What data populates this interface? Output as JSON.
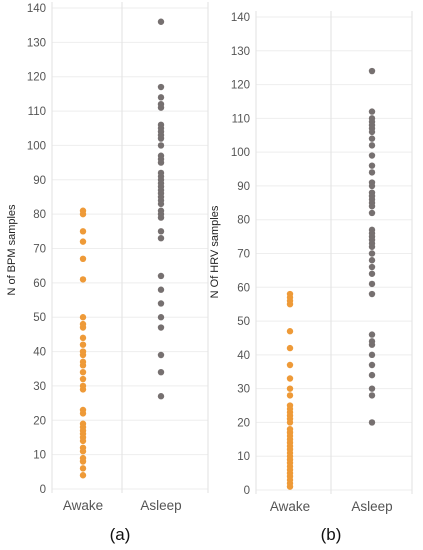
{
  "chart_data": [
    {
      "type": "scatter",
      "caption": "(a)",
      "ylabel": "N of BPM samples",
      "xlabel": "",
      "ylim": [
        0,
        140
      ],
      "yticks": [
        0,
        10,
        20,
        30,
        40,
        50,
        60,
        70,
        80,
        90,
        100,
        110,
        120,
        130,
        140
      ],
      "categories": [
        "Awake",
        "Asleep"
      ],
      "grid": true,
      "series": [
        {
          "category": "Awake",
          "color": "#ee9a38",
          "values": [
            4,
            6,
            8,
            9,
            11,
            12,
            14,
            15,
            16,
            17,
            18,
            19,
            22,
            23,
            29,
            30,
            32,
            34,
            36,
            37,
            39,
            40,
            42,
            44,
            47,
            48,
            50,
            61,
            67,
            72,
            75,
            80,
            81
          ]
        },
        {
          "category": "Asleep",
          "color": "#767070",
          "values": [
            27,
            34,
            39,
            47,
            50,
            54,
            58,
            62,
            73,
            75,
            79,
            80,
            81,
            83,
            84,
            85,
            86,
            87,
            88,
            89,
            90,
            91,
            92,
            95,
            96,
            97,
            100,
            102,
            103,
            104,
            105,
            106,
            111,
            112,
            114,
            117,
            136
          ]
        }
      ]
    },
    {
      "type": "scatter",
      "caption": "(b)",
      "ylabel": "N Of HRV samples",
      "xlabel": "",
      "ylim": [
        0,
        140
      ],
      "yticks": [
        0,
        10,
        20,
        30,
        40,
        50,
        60,
        70,
        80,
        90,
        100,
        110,
        120,
        130,
        140
      ],
      "categories": [
        "Awake",
        "Asleep"
      ],
      "grid": true,
      "series": [
        {
          "category": "Awake",
          "color": "#ee9a38",
          "values": [
            1,
            2,
            3,
            4,
            5,
            6,
            7,
            8,
            9,
            10,
            11,
            12,
            13,
            14,
            15,
            16,
            17,
            18,
            20,
            21,
            22,
            23,
            24,
            25,
            28,
            30,
            33,
            37,
            42,
            47,
            55,
            56,
            57,
            58
          ]
        },
        {
          "category": "Asleep",
          "color": "#767070",
          "values": [
            20,
            28,
            30,
            34,
            37,
            40,
            43,
            44,
            46,
            58,
            61,
            64,
            66,
            68,
            70,
            72,
            73,
            74,
            75,
            76,
            77,
            82,
            84,
            85,
            86,
            87,
            88,
            90,
            91,
            94,
            96,
            99,
            102,
            104,
            106,
            107,
            108,
            109,
            110,
            112,
            124
          ]
        }
      ]
    }
  ]
}
